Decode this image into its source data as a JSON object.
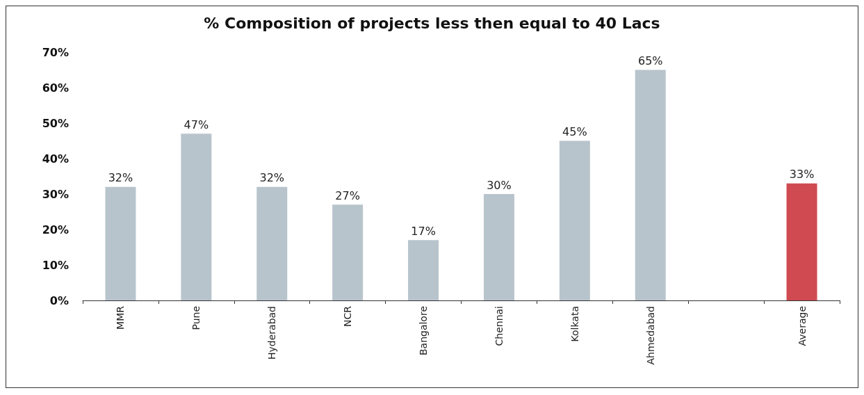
{
  "chart_data": {
    "type": "bar",
    "title": "% Composition of projects less then equal to 40 Lacs",
    "categories": [
      "MMR",
      "Pune",
      "Hyderabad",
      "NCR",
      "Bangalore",
      "Chennai",
      "Kolkata",
      "Ahmedabad",
      null,
      "Average"
    ],
    "values": [
      32,
      47,
      32,
      27,
      17,
      30,
      45,
      65,
      null,
      33
    ],
    "colors": [
      "#b8c4cc",
      "#b8c4cc",
      "#b8c4cc",
      "#b8c4cc",
      "#b8c4cc",
      "#b8c4cc",
      "#b8c4cc",
      "#b8c4cc",
      "#b8c4cc",
      "#d04a52"
    ],
    "value_labels": [
      "32%",
      "47%",
      "32%",
      "27%",
      "17%",
      "30%",
      "45%",
      "65%",
      null,
      "33%"
    ],
    "ylim": [
      0,
      70
    ],
    "yticks": [
      {
        "value": 0,
        "label": "0%"
      },
      {
        "value": 10,
        "label": "10%"
      },
      {
        "value": 20,
        "label": "20%"
      },
      {
        "value": 30,
        "label": "30%"
      },
      {
        "value": 40,
        "label": "40%"
      },
      {
        "value": 50,
        "label": "50%"
      },
      {
        "value": 60,
        "label": "60%"
      },
      {
        "value": 70,
        "label": "70%"
      }
    ],
    "grid": false
  }
}
